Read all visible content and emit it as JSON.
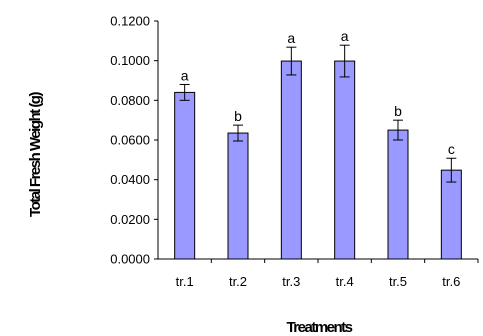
{
  "chart_data": {
    "type": "bar",
    "xlabel": "Treatments",
    "ylabel": "Total Fresh Weight (g)",
    "categories": [
      "tr.1",
      "tr.2",
      "tr.3",
      "tr.4",
      "tr.5",
      "tr.6"
    ],
    "values": [
      0.084,
      0.0635,
      0.0998,
      0.0998,
      0.065,
      0.0448
    ],
    "errors": [
      0.004,
      0.004,
      0.007,
      0.008,
      0.005,
      0.006
    ],
    "significance_letters": [
      "a",
      "b",
      "a",
      "a",
      "b",
      "c"
    ],
    "yticks": [
      "0.0000",
      "0.0200",
      "0.0400",
      "0.0600",
      "0.0800",
      "0.1000",
      "0.1200"
    ],
    "ylim": [
      0,
      0.12
    ],
    "grid": false,
    "bar_color": "#9999ff",
    "bar_edge_color": "#000000"
  }
}
